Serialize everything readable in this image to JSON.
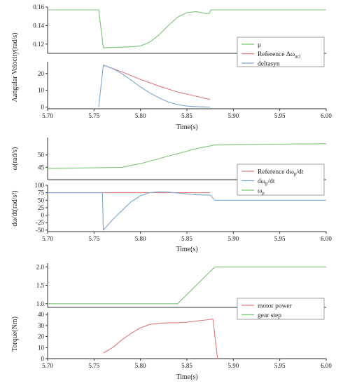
{
  "colors": {
    "green": "#7cc576",
    "red": "#e07a7a",
    "blue": "#7ba7d6",
    "axis": "#333333"
  },
  "chart_data": [
    {
      "type": "line",
      "xlabel": "Time(s)",
      "ylabel": "Aangular Velocity(rad/s)",
      "legend": {
        "placement": "right",
        "items": [
          {
            "key": "mu",
            "color": "green",
            "main": "μ",
            "sub": ""
          },
          {
            "key": "ref",
            "color": "red",
            "main": "Reference Δω",
            "sub": "acl"
          },
          {
            "key": "delta",
            "color": "blue",
            "main": "deltasyn",
            "sub": ""
          }
        ]
      },
      "subplots": [
        {
          "ylim": [
            0.11,
            0.16
          ],
          "xlim": [
            5.7,
            6.0
          ],
          "yticks": [
            0.12,
            0.14,
            0.16
          ],
          "ytick_labels": [
            "0.12",
            "0.14",
            "0.16"
          ],
          "xticks": [],
          "xtick_labels": [],
          "series": [
            {
              "key": "mu",
              "color": "green",
              "x": [
                5.7,
                5.755,
                5.76,
                5.79,
                5.8,
                5.81,
                5.82,
                5.83,
                5.84,
                5.85,
                5.86,
                5.87,
                5.874,
                5.876,
                5.88,
                6.0
              ],
              "y": [
                0.157,
                0.157,
                0.116,
                0.117,
                0.118,
                0.122,
                0.13,
                0.14,
                0.149,
                0.154,
                0.155,
                0.153,
                0.153,
                0.157,
                0.157,
                0.157
              ]
            }
          ]
        },
        {
          "ylim": [
            -1,
            27
          ],
          "xlim": [
            5.7,
            6.0
          ],
          "yticks": [
            0,
            10,
            20
          ],
          "ytick_labels": [
            "0",
            "10",
            "20"
          ],
          "xticks": [
            5.7,
            5.75,
            5.8,
            5.85,
            5.9,
            5.95,
            6.0
          ],
          "xtick_labels": [
            "5.70",
            "5.75",
            "5.80",
            "5.85",
            "5.90",
            "5.95",
            "6.00"
          ],
          "series": [
            {
              "key": "ref",
              "color": "red",
              "x": [
                5.76,
                5.78,
                5.8,
                5.82,
                5.84,
                5.86,
                5.875
              ],
              "y": [
                25,
                21,
                16.5,
                12.5,
                9,
                6.5,
                4.5
              ]
            },
            {
              "key": "delta",
              "color": "blue",
              "x": [
                5.755,
                5.76,
                5.77,
                5.78,
                5.79,
                5.8,
                5.81,
                5.82,
                5.83,
                5.84,
                5.85,
                5.86,
                5.87,
                5.875
              ],
              "y": [
                0,
                25,
                23,
                20,
                16,
                12,
                8.5,
                5.5,
                3,
                1.5,
                0.6,
                0.3,
                0.1,
                0
              ]
            }
          ]
        }
      ]
    },
    {
      "type": "line",
      "xlabel": "Time(s)",
      "legend": {
        "placement": "right",
        "items": [
          {
            "key": "refdw",
            "color": "red",
            "main": "Reference dω",
            "sub": "p",
            "tail": "/dt"
          },
          {
            "key": "dw",
            "color": "blue",
            "main": "dω",
            "sub": "p",
            "tail": "/dt"
          },
          {
            "key": "wp",
            "color": "green",
            "main": "ω",
            "sub": "p",
            "tail": ""
          }
        ]
      },
      "subplots": [
        {
          "ylabel": "ω(rad/s)",
          "ylim": [
            40,
            57
          ],
          "xlim": [
            5.7,
            6.0
          ],
          "yticks": [
            45,
            50
          ],
          "ytick_labels": [
            "45",
            "50"
          ],
          "xticks": [],
          "xtick_labels": [],
          "series": [
            {
              "key": "wp",
              "color": "green",
              "x": [
                5.7,
                5.75,
                5.77,
                5.78,
                5.8,
                5.82,
                5.84,
                5.86,
                5.88,
                5.9,
                6.0
              ],
              "y": [
                44.5,
                44.8,
                44.9,
                45,
                46.5,
                48.5,
                50.5,
                52.5,
                54,
                54.2,
                54.5
              ]
            }
          ]
        },
        {
          "ylabel": "dω/dt(rad/s²)",
          "ylim": [
            -55,
            100
          ],
          "xlim": [
            5.7,
            6.0
          ],
          "yticks": [
            -50,
            -25,
            0,
            25,
            50,
            75,
            100
          ],
          "ytick_labels": [
            "-50",
            "-25",
            "0",
            "25",
            "50",
            "75",
            "100"
          ],
          "xticks": [
            5.7,
            5.75,
            5.8,
            5.85,
            5.9,
            5.95,
            6.0
          ],
          "xtick_labels": [
            "5.70",
            "5.75",
            "5.80",
            "5.85",
            "5.90",
            "5.95",
            "6.00"
          ],
          "series": [
            {
              "key": "refdw",
              "color": "red",
              "x": [
                5.7,
                5.875
              ],
              "y": [
                75,
                75
              ]
            },
            {
              "key": "dw",
              "color": "blue",
              "x": [
                5.7,
                5.759,
                5.76,
                5.77,
                5.78,
                5.79,
                5.8,
                5.81,
                5.82,
                5.83,
                5.84,
                5.85,
                5.86,
                5.875,
                5.88,
                6.0
              ],
              "y": [
                75,
                75,
                -50,
                -15,
                15,
                45,
                65,
                75,
                78,
                77,
                74,
                71,
                68,
                67,
                50,
                50
              ]
            }
          ]
        }
      ]
    },
    {
      "type": "line",
      "xlabel": "Time(s)",
      "ylabel": "Torque(Nm)",
      "legend": {
        "placement": "right",
        "items": [
          {
            "key": "motor",
            "color": "red",
            "main": "motor power",
            "sub": ""
          },
          {
            "key": "gear",
            "color": "green",
            "main": "gear step",
            "sub": ""
          }
        ]
      },
      "subplots": [
        {
          "ylim": [
            0.9,
            2.1
          ],
          "xlim": [
            5.7,
            6.0
          ],
          "yticks": [
            1.0,
            1.5,
            2.0
          ],
          "ytick_labels": [
            "1.0",
            "1.5",
            "2.0"
          ],
          "xticks": [],
          "xtick_labels": [],
          "series": [
            {
              "key": "gear",
              "color": "green",
              "x": [
                5.7,
                5.84,
                5.88,
                6.0
              ],
              "y": [
                1.0,
                1.0,
                2.0,
                2.0
              ]
            }
          ]
        },
        {
          "ylim": [
            0,
            42
          ],
          "xlim": [
            5.7,
            6.0
          ],
          "yticks": [
            0,
            10,
            20,
            30,
            40
          ],
          "ytick_labels": [
            "0",
            "10",
            "20",
            "30",
            "40"
          ],
          "xticks": [
            5.7,
            5.75,
            5.8,
            5.85,
            5.9,
            5.95,
            6.0
          ],
          "xtick_labels": [
            "5.70",
            "5.75",
            "5.80",
            "5.85",
            "5.90",
            "5.95",
            "6.00"
          ],
          "series": [
            {
              "key": "motor",
              "color": "red",
              "x": [
                5.76,
                5.77,
                5.78,
                5.79,
                5.8,
                5.81,
                5.82,
                5.83,
                5.84,
                5.85,
                5.86,
                5.87,
                5.878,
                5.883
              ],
              "y": [
                5,
                10,
                17,
                23,
                28,
                31,
                32,
                32.5,
                32.5,
                33,
                34,
                35,
                36,
                0
              ]
            }
          ]
        }
      ]
    }
  ]
}
